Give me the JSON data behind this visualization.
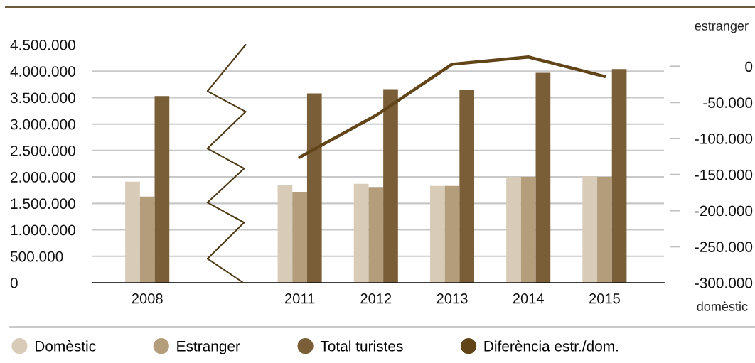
{
  "chart_data": {
    "type": "bar",
    "categories": [
      "2008",
      null,
      "2011",
      "2012",
      "2013",
      "2014",
      "2015"
    ],
    "series": [
      {
        "name": "Domèstic",
        "color": "#d8cbb7",
        "values": [
          1910000,
          null,
          1850000,
          1870000,
          1830000,
          2000000,
          2010000
        ]
      },
      {
        "name": "Estranger",
        "color": "#b39d7b",
        "values": [
          1630000,
          null,
          1720000,
          1810000,
          1830000,
          2000000,
          2000000
        ]
      },
      {
        "name": "Total turistes",
        "color": "#7a5e37",
        "values": [
          3530000,
          null,
          3580000,
          3660000,
          3650000,
          3970000,
          4040000
        ]
      },
      {
        "name": "Diferència estr./dom.",
        "type": "line",
        "axis": "y2",
        "color": "#614519",
        "values": [
          null,
          null,
          -126000,
          -68000,
          3000,
          13000,
          -14000
        ]
      }
    ],
    "ylim": [
      0,
      4500000
    ],
    "yticks": [
      0,
      {
        "value": 500000,
        "label": "500.000"
      },
      {
        "value": 1000000,
        "label": "1.000.000"
      },
      {
        "value": 1500000,
        "label": "1.500.000"
      },
      {
        "value": 2000000,
        "label": "2.000.000"
      },
      {
        "value": 2500000,
        "label": "2.500.000"
      },
      {
        "value": 3000000,
        "label": "3.000.000"
      },
      {
        "value": 3500000,
        "label": "3.500.000"
      },
      {
        "value": 4000000,
        "label": "4.000.000"
      },
      {
        "value": 4500000,
        "label": "4.500.000"
      }
    ],
    "y2lim": [
      -300000,
      30000
    ],
    "y2ticks": [
      0,
      {
        "value": -50000,
        "label": "-50.000"
      },
      {
        "value": -100000,
        "label": "-100.000"
      },
      {
        "value": -150000,
        "label": "-150.000"
      },
      {
        "value": -200000,
        "label": "-200.000"
      },
      {
        "value": -250000,
        "label": "-250.000"
      },
      {
        "value": -300000,
        "label": "-300.000"
      }
    ],
    "annotations": [
      "estranger",
      "domèstic"
    ],
    "grid": "y",
    "legend": "bottom",
    "line_style": "solid"
  }
}
